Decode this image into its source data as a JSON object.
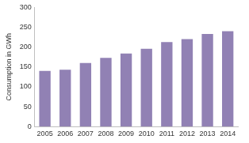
{
  "chart_data": {
    "type": "bar",
    "ylabel": "Consumption in GWh",
    "categories": [
      "2005",
      "2006",
      "2007",
      "2008",
      "2009",
      "2010",
      "2011",
      "2012",
      "2013",
      "2014"
    ],
    "values": [
      140,
      143,
      160,
      173,
      184,
      196,
      213,
      220,
      233,
      240
    ],
    "color": "#9181b4",
    "ylim": [
      0,
      300
    ],
    "yticks": [
      0,
      50,
      100,
      150,
      200,
      250,
      300
    ],
    "grid": false
  }
}
